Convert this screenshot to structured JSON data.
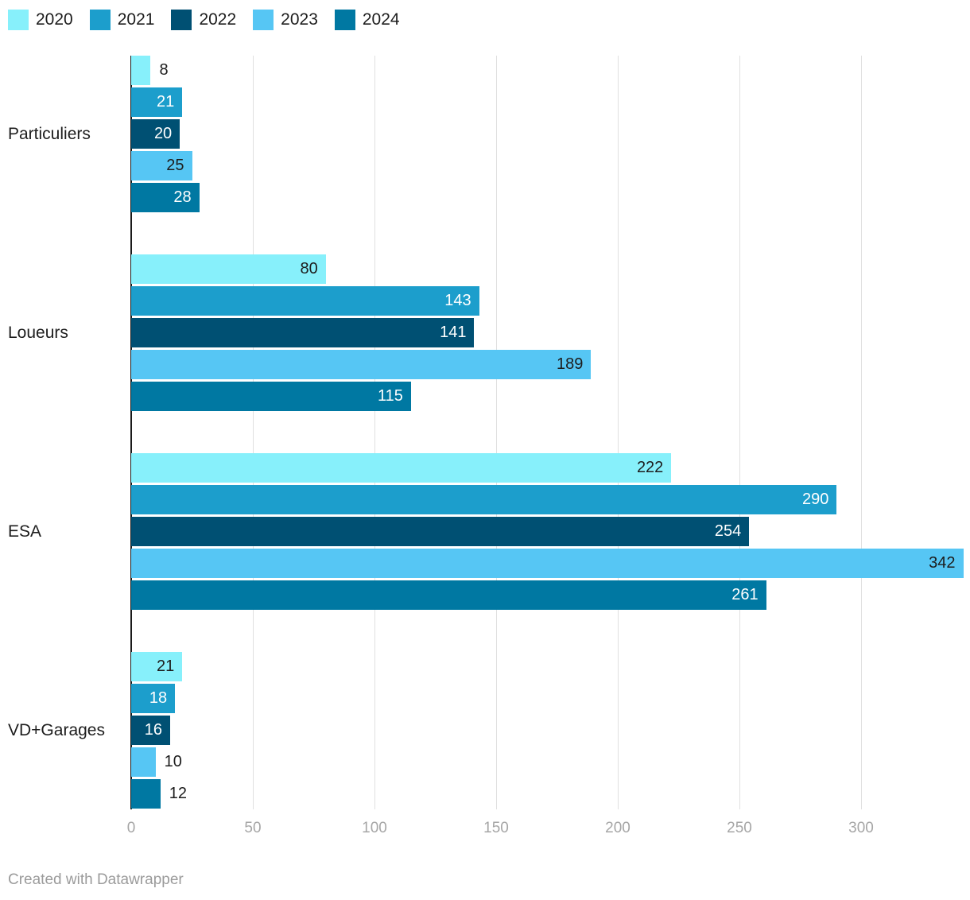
{
  "legend": {
    "items": [
      {
        "label": "2020",
        "color": "#87F0FB",
        "text_on_bar": "#1d1d1d"
      },
      {
        "label": "2021",
        "color": "#1C9ECC",
        "text_on_bar": "#ffffff"
      },
      {
        "label": "2022",
        "color": "#005073",
        "text_on_bar": "#ffffff"
      },
      {
        "label": "2023",
        "color": "#56C6F4",
        "text_on_bar": "#1d1d1d"
      },
      {
        "label": "2024",
        "color": "#0078A2",
        "text_on_bar": "#ffffff"
      }
    ]
  },
  "chart_data": {
    "type": "bar",
    "orientation": "horizontal",
    "categories": [
      "Particuliers",
      "Loueurs",
      "ESA",
      "VD+Garages"
    ],
    "series": [
      {
        "name": "2020",
        "color": "#87F0FB",
        "values": [
          8,
          80,
          222,
          21
        ]
      },
      {
        "name": "2021",
        "color": "#1C9ECC",
        "values": [
          21,
          143,
          290,
          18
        ]
      },
      {
        "name": "2022",
        "color": "#005073",
        "values": [
          20,
          141,
          254,
          16
        ]
      },
      {
        "name": "2023",
        "color": "#56C6F4",
        "values": [
          25,
          189,
          342,
          10
        ]
      },
      {
        "name": "2024",
        "color": "#0078A2",
        "values": [
          28,
          115,
          261,
          12
        ]
      }
    ],
    "xticks": [
      0,
      50,
      100,
      150,
      200,
      250,
      300
    ],
    "xlim": [
      0,
      342
    ],
    "title": "",
    "xlabel": "",
    "ylabel": "",
    "grid": true,
    "legend_position": "top",
    "value_labels_shown": true
  },
  "colors": {
    "grid": "#e0e0e0",
    "zero_axis": "#1a1a1a",
    "tick_text": "#a6a6a6",
    "dark_label": "#1d1d1d",
    "footer_text": "#9b9b9b"
  },
  "footer": {
    "credit": "Created with Datawrapper"
  }
}
